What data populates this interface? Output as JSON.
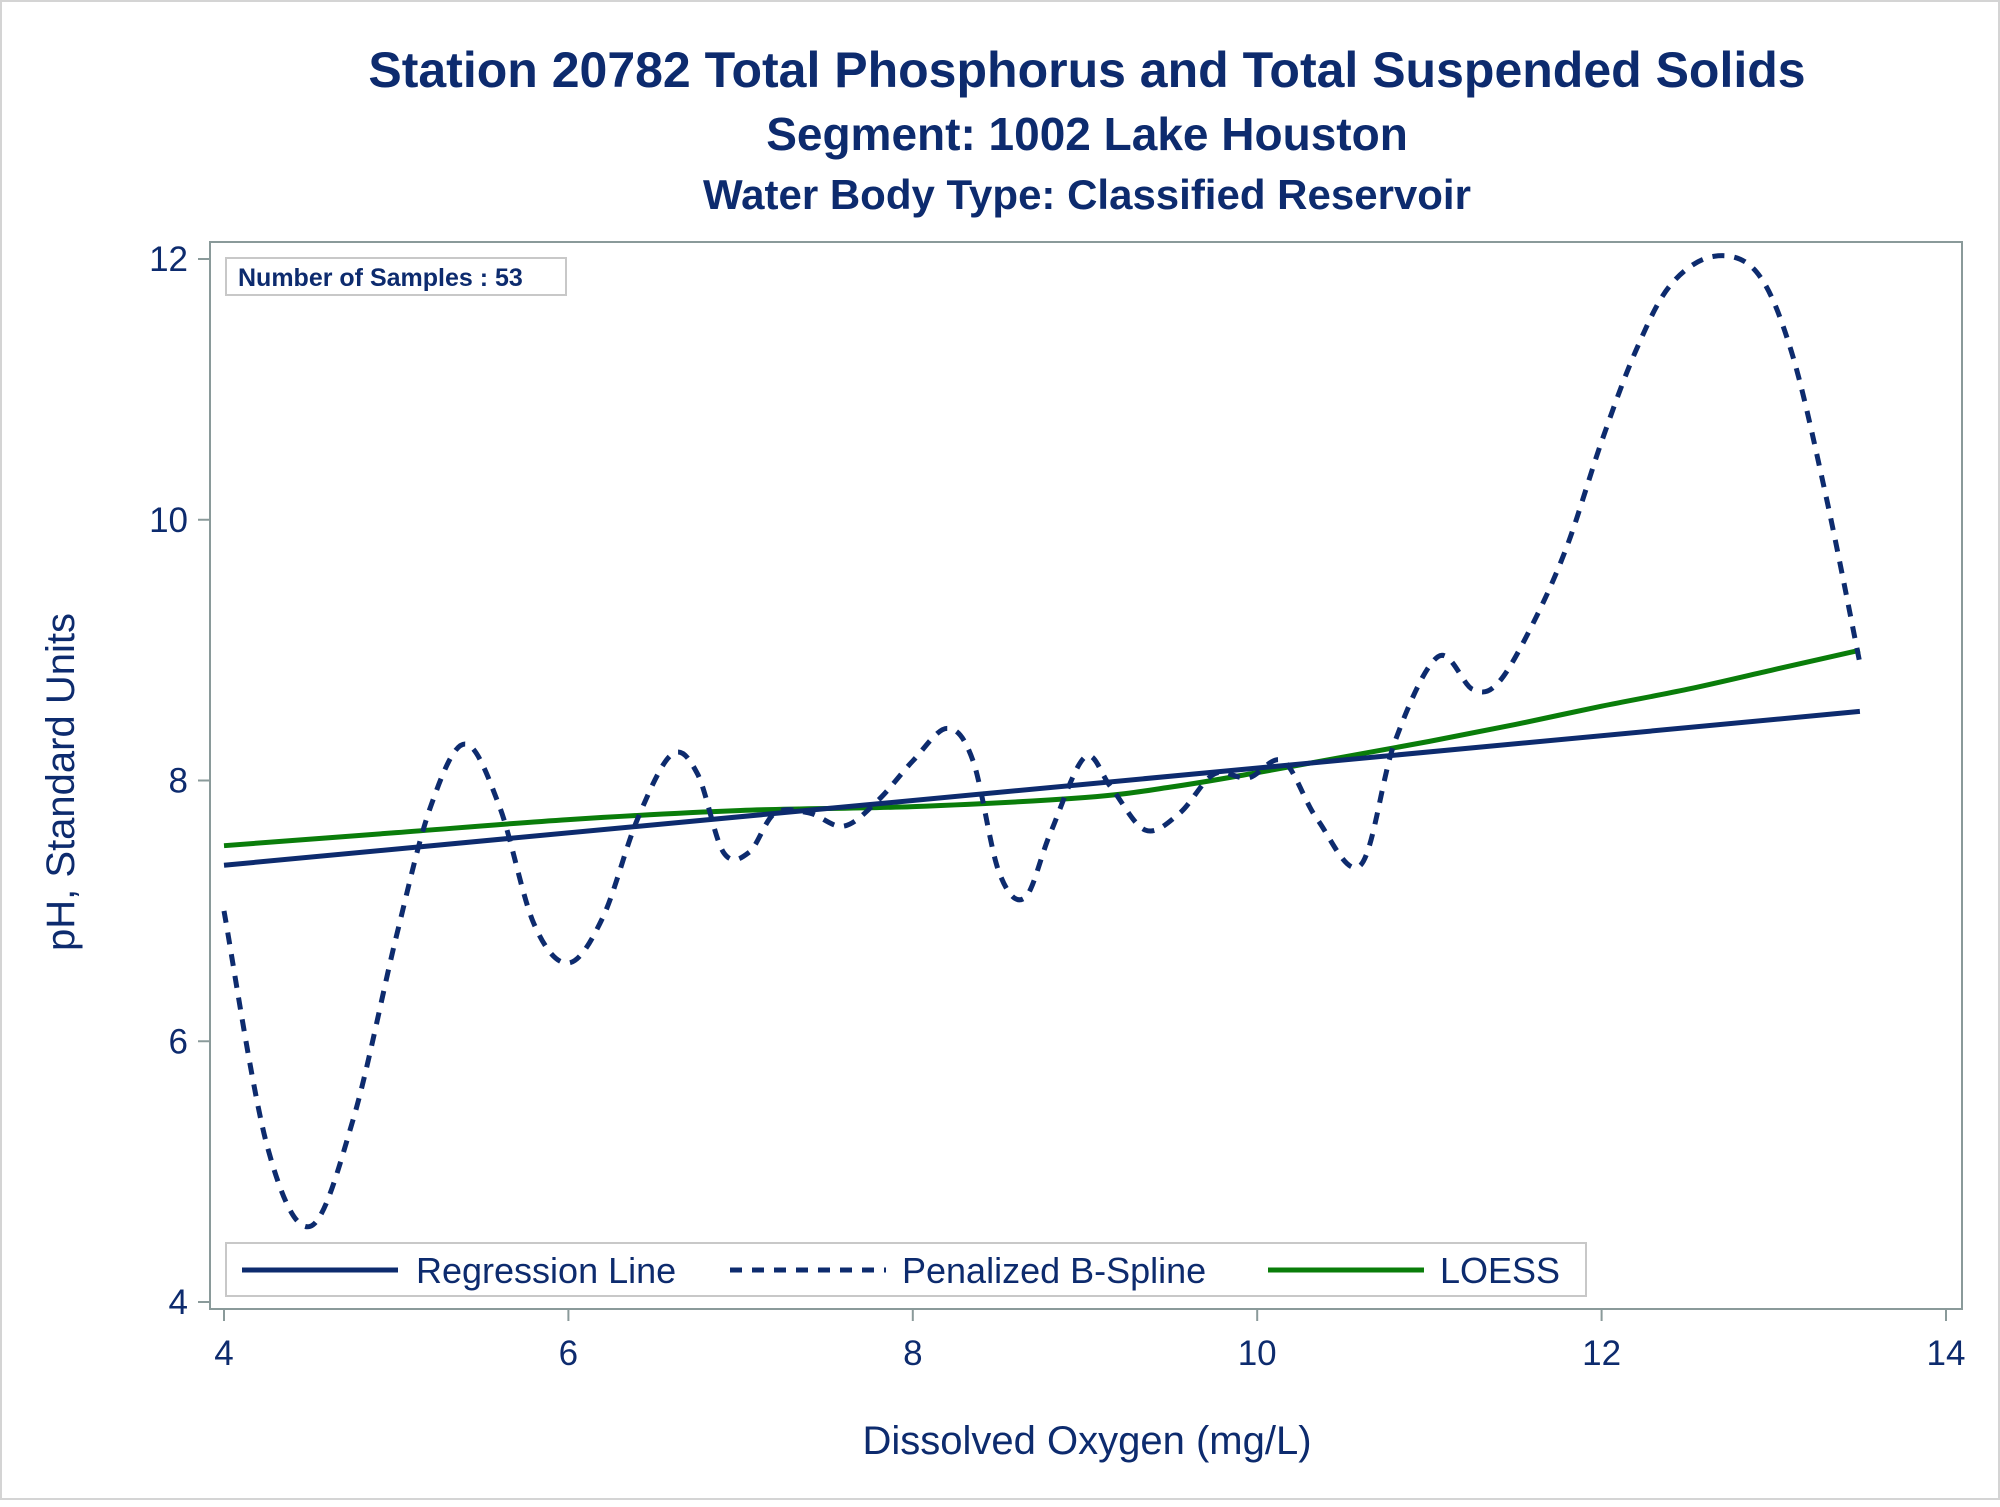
{
  "title": "Station 20782  Total Phosphorus and Total Suspended Solids",
  "subtitle": "Segment: 1002  Lake Houston",
  "subtitle2": "Water Body Type: Classified Reservoir",
  "inset_label": "Number of Samples : 53",
  "colors": {
    "regression": "#0d2b6e",
    "spline": "#0d2b6e",
    "loess": "#0a7d0a",
    "text": "#0d2b6e",
    "frame": "#8a9a9a"
  },
  "chart_data": {
    "type": "line",
    "xlabel": "Dissolved Oxygen (mg/L)",
    "ylabel": "pH, Standard Units",
    "xlim": [
      4,
      14
    ],
    "ylim": [
      4,
      12
    ],
    "x_ticks": [
      4,
      6,
      8,
      10,
      12,
      14
    ],
    "y_ticks": [
      4,
      6,
      8,
      10,
      12
    ],
    "grid": false,
    "legend_position": "bottom-inside",
    "series": [
      {
        "name": "Regression Line",
        "style": "solid",
        "color": "#0d2b6e",
        "x": [
          4.0,
          13.5
        ],
        "y": [
          7.35,
          8.53
        ]
      },
      {
        "name": "Penalized B-Spline",
        "style": "dashed",
        "color": "#0d2b6e",
        "x": [
          4.0,
          4.25,
          4.5,
          4.75,
          5.0,
          5.2,
          5.4,
          5.6,
          5.8,
          6.0,
          6.2,
          6.4,
          6.6,
          6.75,
          6.9,
          7.05,
          7.2,
          7.4,
          7.6,
          7.8,
          8.0,
          8.2,
          8.35,
          8.5,
          8.65,
          8.8,
          9.0,
          9.15,
          9.35,
          9.55,
          9.75,
          9.95,
          10.15,
          10.35,
          10.6,
          10.8,
          11.05,
          11.25,
          11.4,
          11.6,
          11.8,
          12.0,
          12.2,
          12.4,
          12.65,
          12.9,
          13.1,
          13.3,
          13.5
        ],
        "y": [
          7.0,
          5.2,
          4.58,
          5.4,
          6.8,
          7.8,
          8.28,
          7.8,
          6.9,
          6.6,
          6.95,
          7.7,
          8.2,
          8.05,
          7.45,
          7.45,
          7.75,
          7.75,
          7.65,
          7.85,
          8.15,
          8.4,
          8.15,
          7.3,
          7.1,
          7.6,
          8.18,
          7.95,
          7.62,
          7.75,
          8.05,
          8.02,
          8.15,
          7.7,
          7.35,
          8.3,
          8.95,
          8.7,
          8.75,
          9.2,
          9.8,
          10.6,
          11.3,
          11.8,
          12.02,
          11.9,
          11.3,
          10.2,
          8.9
        ]
      },
      {
        "name": "LOESS",
        "style": "solid",
        "color": "#0a7d0a",
        "x": [
          4.0,
          5.0,
          6.0,
          7.0,
          8.0,
          9.0,
          9.5,
          10.0,
          10.5,
          11.0,
          11.5,
          12.0,
          12.5,
          13.0,
          13.5
        ],
        "y": [
          7.5,
          7.6,
          7.7,
          7.77,
          7.8,
          7.87,
          7.95,
          8.06,
          8.18,
          8.3,
          8.43,
          8.57,
          8.7,
          8.85,
          9.0
        ]
      }
    ]
  }
}
